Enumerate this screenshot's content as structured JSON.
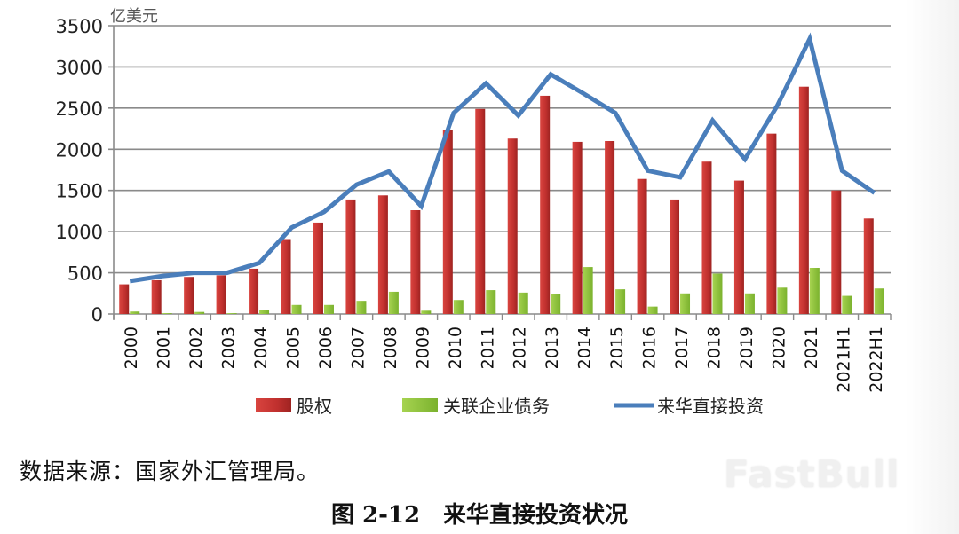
{
  "chart_data": {
    "type": "bar",
    "title": "来华直接投资状况",
    "figure_label": "图 2-12",
    "ylabel": "亿美元",
    "xlabel": "",
    "ylim": [
      0,
      3500
    ],
    "yticks": [
      0,
      500,
      1000,
      1500,
      2000,
      2500,
      3000,
      3500
    ],
    "grid": true,
    "legend_position": "bottom",
    "categories": [
      "2000",
      "2001",
      "2002",
      "2003",
      "2004",
      "2005",
      "2006",
      "2007",
      "2008",
      "2009",
      "2010",
      "2011",
      "2012",
      "2013",
      "2014",
      "2015",
      "2016",
      "2017",
      "2018",
      "2019",
      "2020",
      "2021",
      "2021H1",
      "2022H1"
    ],
    "series": [
      {
        "name": "股权",
        "type": "bar",
        "color": "#c0302e",
        "values": [
          360,
          410,
          450,
          470,
          550,
          910,
          1110,
          1390,
          1440,
          1260,
          2240,
          2490,
          2130,
          2650,
          2090,
          2100,
          1640,
          1390,
          1850,
          1620,
          2190,
          2760,
          1500,
          1160
        ]
      },
      {
        "name": "关联企业债务",
        "type": "bar",
        "color": "#8cc43c",
        "values": [
          30,
          10,
          25,
          10,
          50,
          110,
          110,
          160,
          270,
          40,
          170,
          290,
          260,
          240,
          570,
          300,
          90,
          250,
          490,
          250,
          320,
          560,
          220,
          310
        ]
      },
      {
        "name": "来华直接投资",
        "type": "line",
        "color": "#4a7ebb",
        "values": [
          400,
          460,
          500,
          500,
          620,
          1050,
          1240,
          1570,
          1730,
          1310,
          2440,
          2800,
          2410,
          2910,
          2680,
          2440,
          1740,
          1660,
          2350,
          1880,
          2530,
          3340,
          1740,
          1470
        ]
      }
    ]
  },
  "labels": {
    "unit": "亿美元",
    "source": "数据来源：国家外汇管理局。",
    "caption": "图 2-12　来华直接投资状况",
    "watermark": "FastBull"
  }
}
